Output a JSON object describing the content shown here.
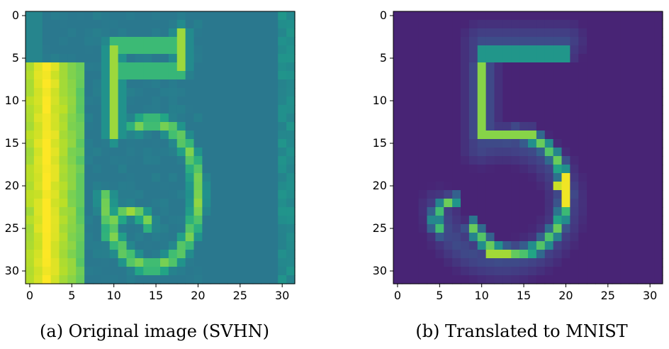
{
  "figures": [
    {
      "caption": "(a) Original image (SVHN)",
      "chart_type": "heatmap",
      "colormap": "viridis",
      "x_ticks": [
        "0",
        "5",
        "10",
        "15",
        "20",
        "25",
        "30"
      ],
      "y_ticks": [
        "0",
        "5",
        "10",
        "15",
        "20",
        "25",
        "30"
      ],
      "grid": false,
      "digit_depicted": "15",
      "description": "Greenish teal background; bright yellow-green vertical '1' on the left, green '5' in the center, darker purple region on the right."
    },
    {
      "caption": "(b) Translated to MNIST",
      "chart_type": "heatmap",
      "colormap": "viridis",
      "x_ticks": [
        "0",
        "5",
        "10",
        "15",
        "20",
        "25",
        "30"
      ],
      "y_ticks": [
        "0",
        "5",
        "10",
        "15",
        "20",
        "25",
        "30"
      ],
      "grid": false,
      "digit_depicted": "5",
      "description": "Dark purple background with a green-yellow stroked digit '5' centered."
    }
  ],
  "chart_data": [
    {
      "type": "heatmap",
      "title": "(a) Original image (SVHN)",
      "x": [
        0,
        31
      ],
      "y": [
        0,
        31
      ],
      "xlim": [
        -0.5,
        31.5
      ],
      "ylim": [
        31.5,
        -0.5
      ],
      "x_tick_values": [
        0,
        5,
        10,
        15,
        20,
        25,
        30
      ],
      "y_tick_values": [
        0,
        5,
        10,
        15,
        20,
        25,
        30
      ],
      "shape": [
        32,
        32
      ],
      "colormap": "viridis"
    },
    {
      "type": "heatmap",
      "title": "(b) Translated to MNIST",
      "x": [
        0,
        31
      ],
      "y": [
        0,
        31
      ],
      "xlim": [
        -0.5,
        31.5
      ],
      "ylim": [
        31.5,
        -0.5
      ],
      "x_tick_values": [
        0,
        5,
        10,
        15,
        20,
        25,
        30
      ],
      "y_tick_values": [
        0,
        5,
        10,
        15,
        20,
        25,
        30
      ],
      "shape": [
        32,
        32
      ],
      "colormap": "viridis"
    }
  ]
}
